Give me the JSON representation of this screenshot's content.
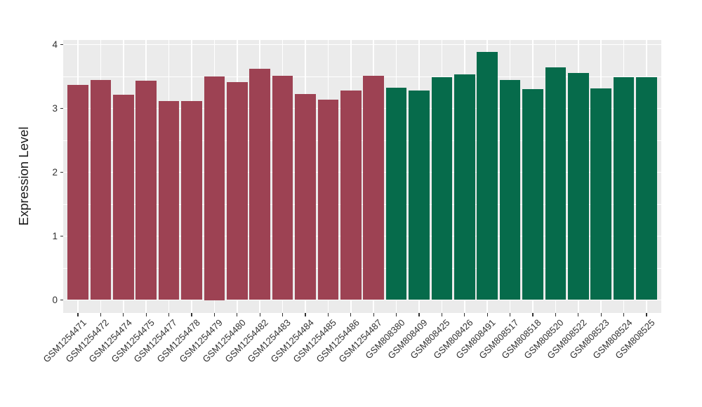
{
  "chart_data": {
    "type": "bar",
    "title": "",
    "ylabel": "Expression Level",
    "xlabel": "",
    "ylim": [
      0,
      4
    ],
    "yticks": [
      0,
      1,
      2,
      3,
      4
    ],
    "yminor": [
      0.5,
      1.5,
      2.5,
      3.5
    ],
    "grid": "white major and minor horizontal lines plus vertical line at each bar center, on grey panel",
    "legend_position": "none",
    "panel_bg": "#EBEBEB",
    "gridline_color": "#FFFFFF",
    "tick_text_color": "#303030",
    "categories": [
      "GSM1254471",
      "GSM1254472",
      "GSM1254474",
      "GSM1254475",
      "GSM1254477",
      "GSM1254478",
      "GSM1254479",
      "GSM1254480",
      "GSM1254482",
      "GSM1254483",
      "GSM1254484",
      "GSM1254485",
      "GSM1254486",
      "GSM1254487",
      "GSM808380",
      "GSM808409",
      "GSM808425",
      "GSM808426",
      "GSM808491",
      "GSM808517",
      "GSM808518",
      "GSM808520",
      "GSM808522",
      "GSM808523",
      "GSM808524",
      "GSM808525"
    ],
    "values": [
      3.37,
      3.45,
      3.21,
      3.43,
      3.12,
      3.12,
      3.5,
      3.41,
      3.62,
      3.51,
      3.23,
      3.14,
      3.28,
      3.51,
      3.32,
      3.28,
      3.49,
      3.53,
      3.88,
      3.45,
      3.3,
      3.64,
      3.56,
      3.31,
      3.49,
      3.49
    ],
    "bar_groups": [
      {
        "color": "#9D4253",
        "count": 14
      },
      {
        "color": "#066B4B",
        "count": 12
      }
    ]
  }
}
